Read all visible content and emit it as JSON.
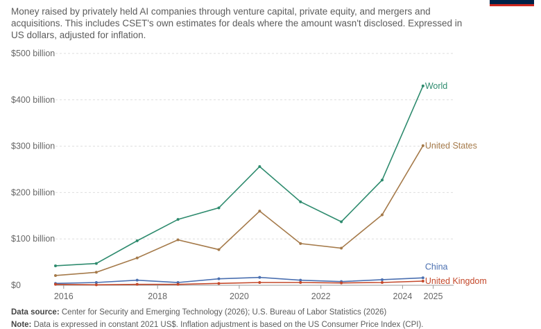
{
  "subtitle": "Money raised by privately held AI companies through venture capital, private equity, and mergers and acquisitions. This includes CSET's own estimates for deals where the amount wasn't disclosed. Expressed in US dollars, adjusted for inflation.",
  "footer": {
    "source_label": "Data source:",
    "source_text": "Center for Security and Emerging Technology (2026); U.S. Bureau of Labor Statistics (2026)",
    "note_label": "Note:",
    "note_text": "Data is expressed in constant 2021 US$. Inflation adjustment is based on the US Consumer Price Index (CPI)."
  },
  "chart_data": {
    "type": "line",
    "x": [
      2015.5,
      2016.5,
      2017.5,
      2018.5,
      2019.5,
      2020.5,
      2021.5,
      2022.5,
      2023.5,
      2024.5
    ],
    "x_range": [
      2015.5,
      2025.25
    ],
    "x_ticks": [
      {
        "value": 2015.7,
        "label": "2016"
      },
      {
        "value": 2018,
        "label": "2018"
      },
      {
        "value": 2020,
        "label": "2020"
      },
      {
        "value": 2022,
        "label": "2022"
      },
      {
        "value": 2024,
        "label": "2024"
      },
      {
        "value": 2024.75,
        "label": "2025"
      }
    ],
    "ylim": [
      0,
      500
    ],
    "y_ticks": [
      {
        "value": 0,
        "label": "$0"
      },
      {
        "value": 100,
        "label": "$100 billion"
      },
      {
        "value": 200,
        "label": "$200 billion"
      },
      {
        "value": 300,
        "label": "$300 billion"
      },
      {
        "value": 400,
        "label": "$400 billion"
      },
      {
        "value": 500,
        "label": "$500 billion"
      }
    ],
    "grid": "horizontal dashed",
    "series": [
      {
        "name": "World",
        "color": "#2e8b6e",
        "values": [
          42,
          47,
          96,
          142,
          167,
          256,
          180,
          137,
          227,
          430
        ]
      },
      {
        "name": "United States",
        "color": "#a57a4a",
        "values": [
          21,
          28,
          59,
          98,
          77,
          160,
          90,
          80,
          152,
          301
        ]
      },
      {
        "name": "China",
        "color": "#4a6fb0",
        "values": [
          4,
          6,
          11,
          6,
          14,
          17,
          11,
          8,
          12,
          16
        ]
      },
      {
        "name": "United Kingdom",
        "color": "#c4482a",
        "values": [
          2,
          1,
          2,
          2,
          4,
          6,
          6,
          5,
          6,
          9
        ]
      }
    ]
  }
}
